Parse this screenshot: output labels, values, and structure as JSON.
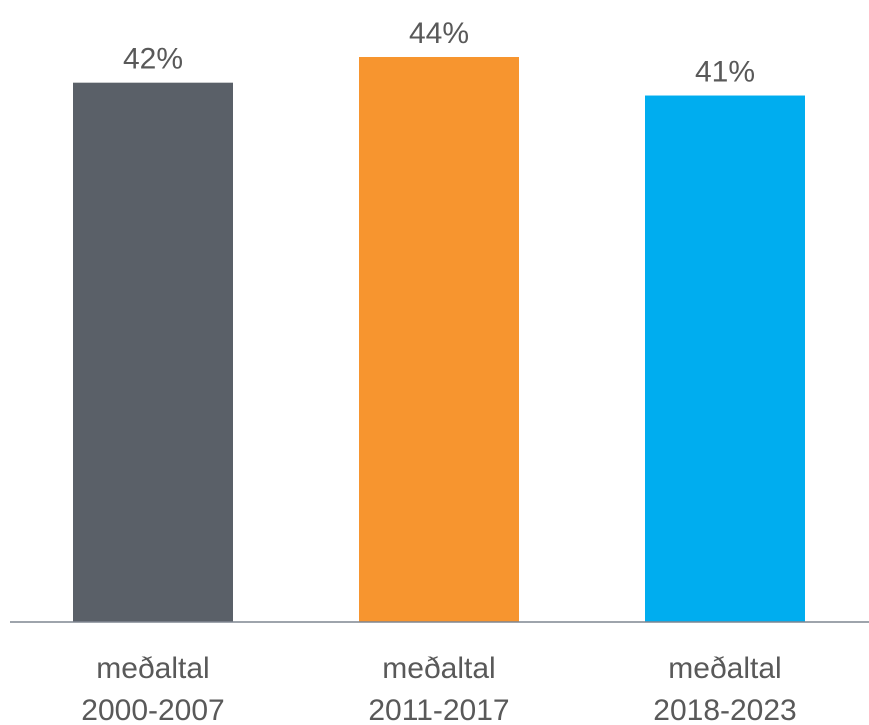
{
  "chart_data": {
    "type": "bar",
    "categories": [
      [
        "meðaltal",
        "2000-2007"
      ],
      [
        "meðaltal",
        "2011-2017"
      ],
      [
        "meðaltal",
        "2018-2023"
      ]
    ],
    "values": [
      42,
      44,
      41
    ],
    "value_labels": [
      "42%",
      "44%",
      "41%"
    ],
    "colors": [
      "#5a6068",
      "#f7952f",
      "#00adef"
    ],
    "axis_color": "#7f8591",
    "ylim": [
      0,
      44
    ],
    "grid": false,
    "legend": false
  }
}
